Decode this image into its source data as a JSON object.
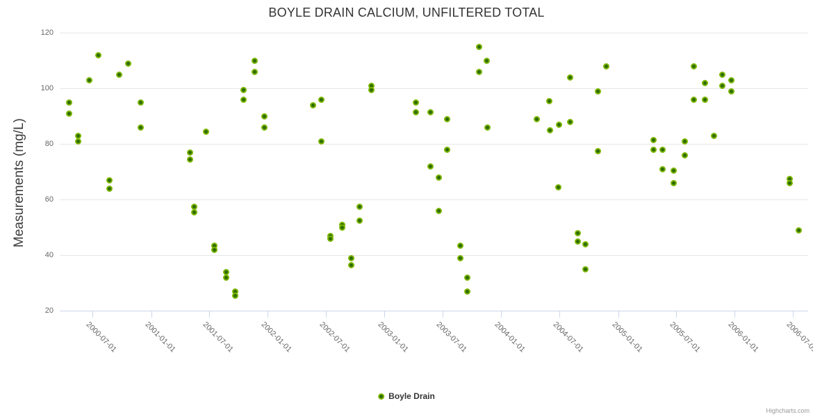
{
  "title": "BOYLE DRAIN CALCIUM, UNFILTERED TOTAL",
  "legend": {
    "label": "Boyle Drain"
  },
  "credits": "Highcharts.com",
  "colors": {
    "marker_core": "#2e6c00",
    "marker_ring": "#7cb501",
    "gridline": "#e6e6e6",
    "axis_line": "#ccd6eb",
    "tick": "#ccd6eb",
    "title_text": "#333333",
    "axis_label_text": "#666666"
  },
  "chart_data": {
    "type": "scatter",
    "title": "BOYLE DRAIN CALCIUM, UNFILTERED TOTAL",
    "xlabel": "",
    "ylabel": "Measurements (mg/L)",
    "ylim": [
      20,
      120
    ],
    "yticks": [
      20,
      40,
      60,
      80,
      100,
      120
    ],
    "xticks": [
      "2000-07-01",
      "2001-01-01",
      "2001-07-01",
      "2002-01-01",
      "2002-07-01",
      "2003-01-01",
      "2003-07-01",
      "2004-01-01",
      "2004-07-01",
      "2005-01-01",
      "2005-07-01",
      "2006-01-01",
      "2006-07-01"
    ],
    "x_range": [
      "2000-03-21",
      "2006-08-12"
    ],
    "grid": "horizontal-only",
    "legend_position": "bottom-center",
    "series": [
      {
        "name": "Boyle Drain",
        "points": [
          [
            "2000-04-19",
            95
          ],
          [
            "2000-04-19",
            91
          ],
          [
            "2000-05-17",
            83
          ],
          [
            "2000-05-17",
            81
          ],
          [
            "2000-06-22",
            103
          ],
          [
            "2000-07-20",
            112
          ],
          [
            "2000-08-24",
            67
          ],
          [
            "2000-08-24",
            64
          ],
          [
            "2000-09-22",
            105
          ],
          [
            "2000-10-21",
            109
          ],
          [
            "2000-11-30",
            95
          ],
          [
            "2000-11-30",
            86
          ],
          [
            "2001-05-03",
            77
          ],
          [
            "2001-05-03",
            74.5
          ],
          [
            "2001-05-16",
            57.5
          ],
          [
            "2001-05-16",
            55.5
          ],
          [
            "2001-06-21",
            84.5
          ],
          [
            "2001-07-18",
            43.5
          ],
          [
            "2001-07-18",
            42
          ],
          [
            "2001-08-23",
            34
          ],
          [
            "2001-08-23",
            32
          ],
          [
            "2001-09-20",
            27
          ],
          [
            "2001-09-20",
            25.5
          ],
          [
            "2001-10-18",
            99.5
          ],
          [
            "2001-10-18",
            96
          ],
          [
            "2001-11-21",
            110
          ],
          [
            "2001-11-21",
            106
          ],
          [
            "2001-12-21",
            90
          ],
          [
            "2001-12-21",
            86
          ],
          [
            "2002-05-23",
            94
          ],
          [
            "2002-06-18",
            96
          ],
          [
            "2002-06-18",
            81
          ],
          [
            "2002-07-16",
            47
          ],
          [
            "2002-07-16",
            46
          ],
          [
            "2002-08-21",
            51
          ],
          [
            "2002-08-21",
            50
          ],
          [
            "2002-09-19",
            39
          ],
          [
            "2002-09-19",
            36.5
          ],
          [
            "2002-10-16",
            57.5
          ],
          [
            "2002-10-16",
            52.5
          ],
          [
            "2002-11-21",
            101
          ],
          [
            "2002-11-21",
            99.5
          ],
          [
            "2003-04-10",
            95
          ],
          [
            "2003-04-10",
            91.5
          ],
          [
            "2003-05-24",
            91.5
          ],
          [
            "2003-05-24",
            72
          ],
          [
            "2003-06-19",
            68
          ],
          [
            "2003-06-19",
            56
          ],
          [
            "2003-07-17",
            89
          ],
          [
            "2003-07-17",
            78
          ],
          [
            "2003-08-26",
            43.5
          ],
          [
            "2003-08-26",
            39
          ],
          [
            "2003-09-18",
            32
          ],
          [
            "2003-09-18",
            27
          ],
          [
            "2003-10-23",
            115
          ],
          [
            "2003-10-23",
            106
          ],
          [
            "2003-11-18",
            110
          ],
          [
            "2003-11-20",
            86
          ],
          [
            "2004-04-22",
            89
          ],
          [
            "2004-05-30",
            95.5
          ],
          [
            "2004-06-01",
            85
          ],
          [
            "2004-06-29",
            64.5
          ],
          [
            "2004-07-01",
            87
          ],
          [
            "2004-08-03",
            104
          ],
          [
            "2004-08-03",
            88
          ],
          [
            "2004-08-27",
            48
          ],
          [
            "2004-08-27",
            45
          ],
          [
            "2004-09-21",
            44
          ],
          [
            "2004-09-21",
            35
          ],
          [
            "2004-10-29",
            99
          ],
          [
            "2004-10-29",
            77.5
          ],
          [
            "2004-11-24",
            108
          ],
          [
            "2005-04-22",
            81.5
          ],
          [
            "2005-04-22",
            78
          ],
          [
            "2005-05-19",
            78
          ],
          [
            "2005-05-19",
            71
          ],
          [
            "2005-06-23",
            70.5
          ],
          [
            "2005-06-23",
            66
          ],
          [
            "2005-07-28",
            81
          ],
          [
            "2005-07-28",
            76
          ],
          [
            "2005-08-25",
            108
          ],
          [
            "2005-08-25",
            96
          ],
          [
            "2005-09-29",
            102
          ],
          [
            "2005-09-29",
            96
          ],
          [
            "2005-10-27",
            83
          ],
          [
            "2005-11-23",
            105
          ],
          [
            "2005-11-23",
            101
          ],
          [
            "2005-12-22",
            103
          ],
          [
            "2005-12-22",
            99
          ],
          [
            "2006-06-21",
            67.5
          ],
          [
            "2006-06-21",
            66
          ],
          [
            "2006-07-21",
            49
          ]
        ]
      }
    ]
  }
}
